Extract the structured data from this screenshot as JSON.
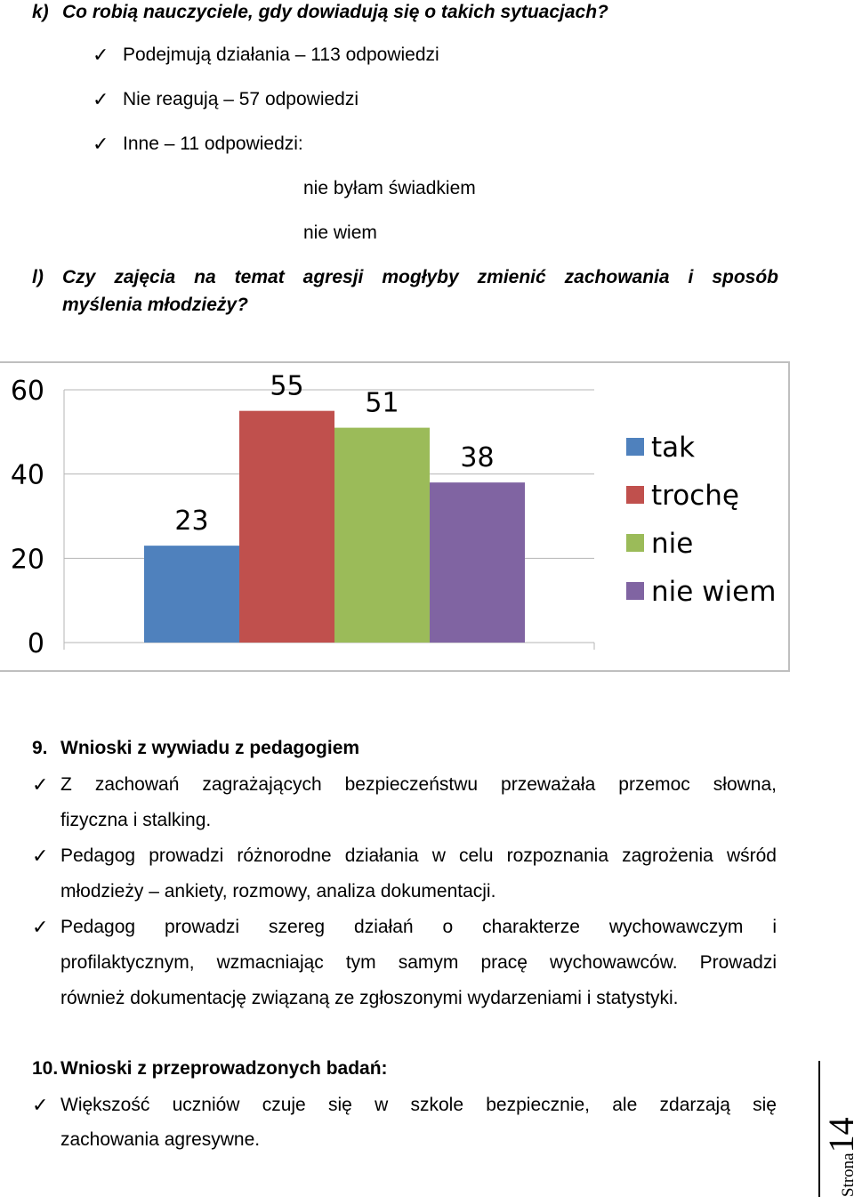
{
  "section_k": {
    "label": "k)",
    "question": "Co robią nauczyciele, gdy dowiadują się o takich sytuacjach?",
    "answers": [
      "Podejmują działania – 113 odpowiedzi",
      "Nie reagują – 57 odpowiedzi",
      "Inne – 11 odpowiedzi:"
    ],
    "other_answers": [
      "nie byłam świadkiem",
      "nie wiem"
    ]
  },
  "section_l": {
    "label": "l)",
    "question_line1": "Czy zajęcia na temat agresji mogłyby zmienić zachowania i sposób",
    "question_line2": "myślenia młodzieży?"
  },
  "chart_data": {
    "type": "bar",
    "categories": [
      "tak",
      "trochę",
      "nie",
      "nie wiem"
    ],
    "values": [
      23,
      55,
      51,
      38
    ],
    "colors": [
      "#4f81bd",
      "#c0504d",
      "#9bbb59",
      "#8064a2"
    ],
    "yticks": [
      0,
      20,
      40,
      60
    ],
    "ylim": [
      0,
      60
    ],
    "legend_position": "right",
    "grid": true,
    "title": "",
    "xlabel": "",
    "ylabel": ""
  },
  "section_9": {
    "number": "9.",
    "title": "Wnioski z wywiadu z pedagogiem",
    "items": [
      [
        "Z zachowań zagrażających bezpieczeństwu przeważała przemoc słowna,",
        "fizyczna i stalking."
      ],
      [
        "Pedagog prowadzi różnorodne działania w celu rozpoznania zagrożenia wśród",
        "młodzieży – ankiety, rozmowy, analiza dokumentacji."
      ],
      [
        "Pedagog prowadzi szereg działań o charakterze wychowawczym i",
        "profilaktycznym, wzmacniając tym samym pracę wychowawców. Prowadzi",
        "również dokumentację związaną ze zgłoszonymi wydarzeniami i statystyki."
      ]
    ]
  },
  "section_10": {
    "number": "10.",
    "title": "Wnioski z przeprowadzonych badań:",
    "items": [
      [
        "Większość uczniów czuje się w szkole bezpiecznie, ale zdarzają się",
        "zachowania agresywne."
      ]
    ]
  },
  "footer": {
    "page_word": "Strona",
    "page_number": "14"
  },
  "icons": {
    "bullet": "checkmark-icon"
  }
}
